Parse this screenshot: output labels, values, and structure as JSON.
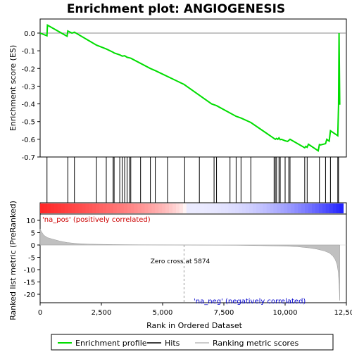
{
  "chart_data": {
    "type": "line",
    "title": "Enrichment plot: ANGIOGENESIS",
    "es_panel": {
      "ylabel": "Enrichment score (ES)",
      "ylim": [
        -0.7,
        0.05
      ],
      "yticks": [
        "0.0",
        "-0.1",
        "-0.2",
        "-0.3",
        "-0.4",
        "-0.5",
        "-0.6",
        "-0.7"
      ],
      "ytick_values": [
        0.0,
        -0.1,
        -0.2,
        -0.3,
        -0.4,
        -0.5,
        -0.6,
        -0.7
      ],
      "zero_line": true,
      "series": [
        {
          "name": "Enrichment profile",
          "color": "#00dd00",
          "x": [
            0,
            280,
            300,
            1100,
            1130,
            1300,
            1400,
            2300,
            2700,
            2980,
            3020,
            3250,
            3350,
            3450,
            3550,
            3650,
            3700,
            4500,
            4700,
            5000,
            5874,
            7000,
            7200,
            8000,
            8200,
            8600,
            9600,
            9650,
            9700,
            9750,
            9800,
            9850,
            10000,
            10100,
            10200,
            10800,
            10850,
            10900,
            10950,
            11350,
            11400,
            11450,
            11650,
            11700,
            11800,
            11850,
            12150,
            12180,
            12200,
            12230
          ],
          "y": [
            0.0,
            -0.015,
            0.045,
            -0.018,
            0.012,
            0.0,
            0.005,
            -0.068,
            -0.09,
            -0.108,
            -0.112,
            -0.123,
            -0.13,
            -0.128,
            -0.137,
            -0.14,
            -0.142,
            -0.2,
            -0.212,
            -0.232,
            -0.29,
            -0.4,
            -0.41,
            -0.47,
            -0.48,
            -0.505,
            -0.6,
            -0.595,
            -0.6,
            -0.592,
            -0.602,
            -0.6,
            -0.608,
            -0.612,
            -0.6,
            -0.648,
            -0.64,
            -0.645,
            -0.628,
            -0.665,
            -0.63,
            -0.632,
            -0.625,
            -0.6,
            -0.61,
            -0.552,
            -0.58,
            -0.405,
            0.0,
            -0.405
          ]
        }
      ]
    },
    "hits": {
      "positions": [
        280,
        1130,
        1400,
        2300,
        2700,
        2980,
        3020,
        3250,
        3350,
        3450,
        3550,
        3650,
        3700,
        4100,
        4500,
        4700,
        5200,
        5900,
        6500,
        7100,
        7200,
        7750,
        8000,
        8200,
        8600,
        9550,
        9600,
        9650,
        9750,
        9800,
        10000,
        10150,
        10200,
        10800,
        10900,
        11400,
        11650,
        11850,
        12150,
        12180
      ]
    },
    "rank_panel": {
      "ylabel": "Ranked list metric (PreRanked)",
      "xlabel": "Rank in Ordered Dataset",
      "ylim": [
        -23,
        10
      ],
      "yticks": [
        "10",
        "5",
        "0",
        "-5",
        "-10",
        "-15",
        "-20"
      ],
      "ytick_values": [
        10,
        5,
        0,
        -5,
        -10,
        -15,
        -20
      ],
      "xlim": [
        0,
        12500
      ],
      "xticks": [
        "0",
        "2,500",
        "5,000",
        "7,500",
        "10,000",
        "12,500"
      ],
      "xtick_values": [
        0,
        2500,
        5000,
        7500,
        10000,
        12500
      ],
      "metric_x": [
        0,
        50,
        150,
        300,
        500,
        800,
        1100,
        1500,
        2000,
        3000,
        4000,
        5000,
        5874,
        7000,
        8000,
        9000,
        10000,
        10500,
        11000,
        11300,
        11600,
        11800,
        11950,
        12050,
        12120,
        12170,
        12200,
        12230
      ],
      "metric_y": [
        6.5,
        5.5,
        4.0,
        3.0,
        2.4,
        1.6,
        1.0,
        0.6,
        0.35,
        0.18,
        0.08,
        0.03,
        0.0,
        -0.05,
        -0.12,
        -0.25,
        -0.45,
        -0.7,
        -1.2,
        -1.7,
        -2.4,
        -3.2,
        -4.5,
        -6.0,
        -8.0,
        -11.0,
        -16.0,
        -22.5
      ],
      "zero_cross_label": "Zero cross at 5874",
      "zero_cross": 5874,
      "pos_label": "'na_pos' (positively correlated)",
      "neg_label": "'na_neg' (negatively correlated)",
      "pos_color": "#cc0000",
      "neg_color": "#0000cc"
    },
    "legend": {
      "placement": "bottom",
      "items": [
        {
          "label": "Enrichment profile",
          "color": "#00dd00"
        },
        {
          "label": "Hits",
          "color": "#000000"
        },
        {
          "label": "Ranking metric scores",
          "color": "#bbbbbb"
        }
      ]
    }
  }
}
